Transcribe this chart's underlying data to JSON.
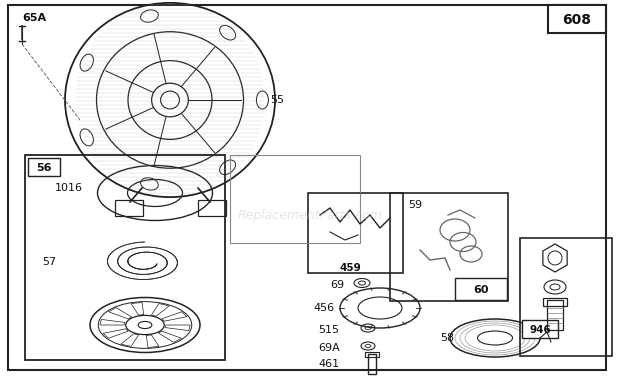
{
  "bg_color": "#ffffff",
  "text_color": "#111111",
  "line_color": "#222222",
  "light_color": "#666666",
  "watermark": "ReplacementParts.com",
  "figsize": [
    6.2,
    3.77
  ],
  "dpi": 100
}
